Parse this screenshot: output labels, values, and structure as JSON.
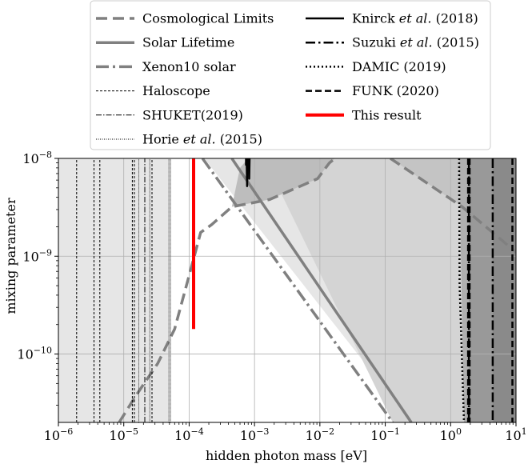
{
  "chart_data": {
    "type": "line",
    "xlabel": "hidden photon mass [eV]",
    "ylabel": "mixing parameter",
    "xscale": "log",
    "yscale": "log",
    "xlim": [
      1e-06,
      10
    ],
    "ylim": [
      2e-11,
      1e-08
    ],
    "grid": true,
    "legend_position": "top",
    "x_ticks": [
      {
        "value": 1e-06,
        "base": "10",
        "exp": "−6"
      },
      {
        "value": 1e-05,
        "base": "10",
        "exp": "−5"
      },
      {
        "value": 0.0001,
        "base": "10",
        "exp": "−4"
      },
      {
        "value": 0.001,
        "base": "10",
        "exp": "−3"
      },
      {
        "value": 0.01,
        "base": "10",
        "exp": "−2"
      },
      {
        "value": 0.1,
        "base": "10",
        "exp": "−1"
      },
      {
        "value": 1,
        "base": "10",
        "exp": "0"
      },
      {
        "value": 10,
        "base": "10",
        "exp": "1"
      }
    ],
    "y_ticks": [
      {
        "value": 1e-10,
        "base": "10",
        "exp": "−10"
      },
      {
        "value": 1e-09,
        "base": "10",
        "exp": "−9"
      },
      {
        "value": 1e-08,
        "base": "10",
        "exp": "−8"
      }
    ],
    "legend": [
      {
        "label_parts": [
          {
            "t": "Cosmological Limits",
            "i": false
          }
        ],
        "color": "#808080",
        "width": 3.5,
        "dash": "14,7",
        "col": 0
      },
      {
        "label_parts": [
          {
            "t": "Solar Lifetime",
            "i": false
          }
        ],
        "color": "#808080",
        "width": 3.5,
        "dash": "",
        "col": 0
      },
      {
        "label_parts": [
          {
            "t": "Xenon10 solar",
            "i": false
          }
        ],
        "color": "#808080",
        "width": 3.5,
        "dash": "16,5,3,5",
        "col": 0
      },
      {
        "label_parts": [
          {
            "t": "Haloscope",
            "i": false
          }
        ],
        "color": "#000000",
        "width": 1,
        "dash": "3,2",
        "col": 0
      },
      {
        "label_parts": [
          {
            "t": "SHUKET(2019)",
            "i": false
          }
        ],
        "color": "#000000",
        "width": 1,
        "dash": "7,2,1.5,2",
        "col": 0
      },
      {
        "label_parts": [
          {
            "t": "Horie ",
            "i": false
          },
          {
            "t": "et al.",
            "i": true
          },
          {
            "t": " (2015)",
            "i": false
          }
        ],
        "color": "#000000",
        "width": 1,
        "dash": "1,1.5",
        "col": 0
      },
      {
        "label_parts": [
          {
            "t": "Knirck ",
            "i": false
          },
          {
            "t": "et al.",
            "i": true
          },
          {
            "t": " (2018)",
            "i": false
          }
        ],
        "color": "#000000",
        "width": 2.5,
        "dash": "",
        "col": 1
      },
      {
        "label_parts": [
          {
            "t": "Suzuki ",
            "i": false
          },
          {
            "t": "et al.",
            "i": true
          },
          {
            "t": " (2015)",
            "i": false
          }
        ],
        "color": "#000000",
        "width": 2.5,
        "dash": "12,4,2.5,4",
        "col": 1
      },
      {
        "label_parts": [
          {
            "t": "DAMIC (2019)",
            "i": false
          }
        ],
        "color": "#000000",
        "width": 2.5,
        "dash": "2,3",
        "col": 1
      },
      {
        "label_parts": [
          {
            "t": "FUNK (2020)",
            "i": false
          }
        ],
        "color": "#000000",
        "width": 2.5,
        "dash": "8,4",
        "col": 1
      },
      {
        "label_parts": [
          {
            "t": "This result",
            "i": false
          }
        ],
        "color": "#ff0000",
        "width": 4,
        "dash": "",
        "col": 1
      }
    ],
    "regions": [
      {
        "name": "haloscope-region",
        "fill": "#e6e6e6",
        "points": [
          [
            1e-06,
            2e-11
          ],
          [
            5.2e-05,
            2e-11
          ],
          [
            5.2e-05,
            1e-08
          ],
          [
            1e-06,
            1e-08
          ]
        ]
      },
      {
        "name": "solar-lifetime-region",
        "fill": "#e6e6e6",
        "points": [
          [
            0.00017,
            1e-08
          ],
          [
            0.25,
            2e-11
          ],
          [
            10,
            2e-11
          ],
          [
            10,
            1e-08
          ]
        ]
      },
      {
        "name": "xenon10-region",
        "fill": "#d4d4d4",
        "points": [
          [
            0.0014,
            1e-08
          ],
          [
            0.13,
            2e-11
          ],
          [
            10,
            2e-11
          ],
          [
            10,
            1e-08
          ]
        ]
      },
      {
        "name": "cosmology-region",
        "fill": "#bdbdbd",
        "points": [
          [
            0.00045,
            3.2e-09
          ],
          [
            0.0017,
            3.8e-09
          ],
          [
            0.0092,
            6.2e-09
          ],
          [
            0.014,
            9e-09
          ],
          [
            0.017,
            1e-08
          ],
          [
            0.0008,
            1e-08
          ],
          [
            0.0006,
            8e-09
          ]
        ]
      },
      {
        "name": "upper-right-cosmology-region",
        "fill": "#c4c4c4",
        "points": [
          [
            0.12,
            1e-08
          ],
          [
            1.5,
            3.2e-09
          ],
          [
            10,
            1.1e-09
          ],
          [
            10,
            1e-08
          ]
        ]
      },
      {
        "name": "damic-region",
        "fill": "#b0b0b0",
        "points": [
          [
            1.35,
            1e-08
          ],
          [
            1.6,
            2e-11
          ],
          [
            10,
            2e-11
          ],
          [
            10,
            1e-08
          ]
        ]
      },
      {
        "name": "funk-region",
        "fill": "#999999",
        "points": [
          [
            1.9,
            1e-08
          ],
          [
            1.9,
            2e-11
          ],
          [
            10,
            2e-11
          ],
          [
            10,
            1e-08
          ]
        ]
      },
      {
        "name": "suzuki-region",
        "fill": "#8a8a8a",
        "points": [
          [
            4.4,
            1e-08
          ],
          [
            4.4,
            2e-11
          ],
          [
            10,
            2e-11
          ],
          [
            10,
            1e-08
          ]
        ]
      }
    ],
    "series": [
      {
        "key": "cosmo",
        "color": "#808080",
        "width": 3.5,
        "dash": "14,7",
        "points": [
          [
            8.5e-06,
            2e-11
          ],
          [
            1.55e-05,
            3.8e-11
          ],
          [
            3.3e-05,
            8e-11
          ],
          [
            6e-05,
            1.8e-10
          ],
          [
            0.000115,
            9e-10
          ],
          [
            0.00015,
            1.75e-09
          ],
          [
            0.00022,
            2.1e-09
          ],
          [
            0.00045,
            3.2e-09
          ],
          [
            0.0017,
            3.8e-09
          ],
          [
            0.0092,
            6.2e-09
          ],
          [
            0.014,
            9e-09
          ],
          [
            0.017,
            1e-08
          ]
        ]
      },
      {
        "key": "cosmo2",
        "color": "#808080",
        "width": 3.5,
        "dash": "14,7",
        "points": [
          [
            0.12,
            1e-08
          ],
          [
            1.5,
            3.2e-09
          ],
          [
            10,
            1.1e-09
          ]
        ]
      },
      {
        "key": "solar",
        "color": "#808080",
        "width": 3.5,
        "dash": "",
        "points": [
          [
            0.00045,
            1e-08
          ],
          [
            0.25,
            2e-11
          ]
        ]
      },
      {
        "key": "xenon",
        "color": "#808080",
        "width": 3.5,
        "dash": "16,5,3,5",
        "points": [
          [
            0.00016,
            1e-08
          ],
          [
            0.13,
            2e-11
          ]
        ]
      },
      {
        "key": "haloscope-1",
        "color": "#000000",
        "width": 1,
        "dash": "3,2",
        "points": [
          [
            1.9e-06,
            2e-11
          ],
          [
            1.9e-06,
            1e-08
          ]
        ]
      },
      {
        "key": "haloscope-2",
        "color": "#000000",
        "width": 1,
        "dash": "3,2",
        "points": [
          [
            3.5e-06,
            2e-11
          ],
          [
            3.5e-06,
            1e-08
          ]
        ]
      },
      {
        "key": "haloscope-3",
        "color": "#000000",
        "width": 1,
        "dash": "3,2",
        "points": [
          [
            4.3e-06,
            2e-11
          ],
          [
            4.3e-06,
            1e-08
          ]
        ]
      },
      {
        "key": "haloscope-4",
        "color": "#000000",
        "width": 1,
        "dash": "3,2",
        "points": [
          [
            1.35e-05,
            2e-11
          ],
          [
            1.35e-05,
            1e-08
          ]
        ]
      },
      {
        "key": "haloscope-5",
        "color": "#000000",
        "width": 1,
        "dash": "3,2",
        "points": [
          [
            1.45e-05,
            2e-11
          ],
          [
            1.45e-05,
            1e-08
          ]
        ]
      },
      {
        "key": "haloscope-6",
        "color": "#000000",
        "width": 1,
        "dash": "3,2",
        "points": [
          [
            2.7e-05,
            2e-11
          ],
          [
            2.7e-05,
            1e-08
          ]
        ]
      },
      {
        "key": "shuket",
        "color": "#000000",
        "width": 1,
        "dash": "7,2,1.5,2",
        "points": [
          [
            2.1e-05,
            2e-11
          ],
          [
            2.1e-05,
            1e-08
          ]
        ]
      },
      {
        "key": "horie-1",
        "color": "#000000",
        "width": 1,
        "dash": "1,1.5",
        "points": [
          [
            1.7e-05,
            2e-11
          ],
          [
            1.7e-05,
            1e-08
          ]
        ]
      },
      {
        "key": "horie-2",
        "color": "#000000",
        "width": 1,
        "dash": "1,1.5",
        "points": [
          [
            2.5e-05,
            2e-11
          ],
          [
            2.5e-05,
            1e-08
          ]
        ]
      },
      {
        "key": "horie-3",
        "color": "#000000",
        "width": 1,
        "dash": "1,1.5",
        "points": [
          [
            4.9e-05,
            2e-11
          ],
          [
            4.9e-05,
            1e-08
          ]
        ]
      },
      {
        "key": "horie-4",
        "color": "#000000",
        "width": 1,
        "dash": "1,1.5",
        "points": [
          [
            5.2e-05,
            2e-11
          ],
          [
            5.2e-05,
            1e-08
          ]
        ]
      },
      {
        "key": "knirck-1",
        "color": "#000000",
        "width": 2.5,
        "dash": "",
        "points": [
          [
            0.00074,
            1e-08
          ],
          [
            0.00074,
            8.6e-09
          ],
          [
            0.00076,
            8.6e-09
          ],
          [
            0.00077,
            5.2e-09
          ],
          [
            0.00078,
            8.6e-09
          ],
          [
            0.00078,
            1e-08
          ]
        ]
      },
      {
        "key": "knirck-2",
        "color": "#000000",
        "width": 2.5,
        "dash": "",
        "points": [
          [
            0.00082,
            1e-08
          ],
          [
            0.00083,
            6.2e-09
          ],
          [
            0.00084,
            1e-08
          ]
        ]
      },
      {
        "key": "damic",
        "color": "#000000",
        "width": 2.5,
        "dash": "2,3",
        "points": [
          [
            1.35,
            1e-08
          ],
          [
            1.37,
            5e-10
          ],
          [
            1.6,
            2e-11
          ]
        ]
      },
      {
        "key": "funk-1",
        "color": "#000000",
        "width": 2.5,
        "dash": "8,4",
        "points": [
          [
            1.85,
            1e-08
          ],
          [
            1.85,
            2e-11
          ]
        ]
      },
      {
        "key": "funk-2",
        "color": "#000000",
        "width": 2.5,
        "dash": "8,4",
        "points": [
          [
            1.95,
            1e-08
          ],
          [
            1.95,
            2e-11
          ]
        ]
      },
      {
        "key": "funk-3",
        "color": "#000000",
        "width": 2.5,
        "dash": "8,4",
        "points": [
          [
            8.8,
            1e-08
          ],
          [
            8.8,
            2e-11
          ]
        ]
      },
      {
        "key": "suzuki-1",
        "color": "#000000",
        "width": 2.5,
        "dash": "12,4,2.5,4",
        "points": [
          [
            1.9,
            1e-08
          ],
          [
            1.9,
            2e-11
          ]
        ]
      },
      {
        "key": "suzuki-2",
        "color": "#000000",
        "width": 2.5,
        "dash": "12,4,2.5,4",
        "points": [
          [
            4.4,
            1e-08
          ],
          [
            4.4,
            2e-11
          ]
        ]
      },
      {
        "key": "this-result",
        "color": "#ff0000",
        "width": 4,
        "dash": "",
        "points": [
          [
            0.000117,
            1e-08
          ],
          [
            0.000117,
            1.8e-10
          ]
        ]
      }
    ]
  }
}
